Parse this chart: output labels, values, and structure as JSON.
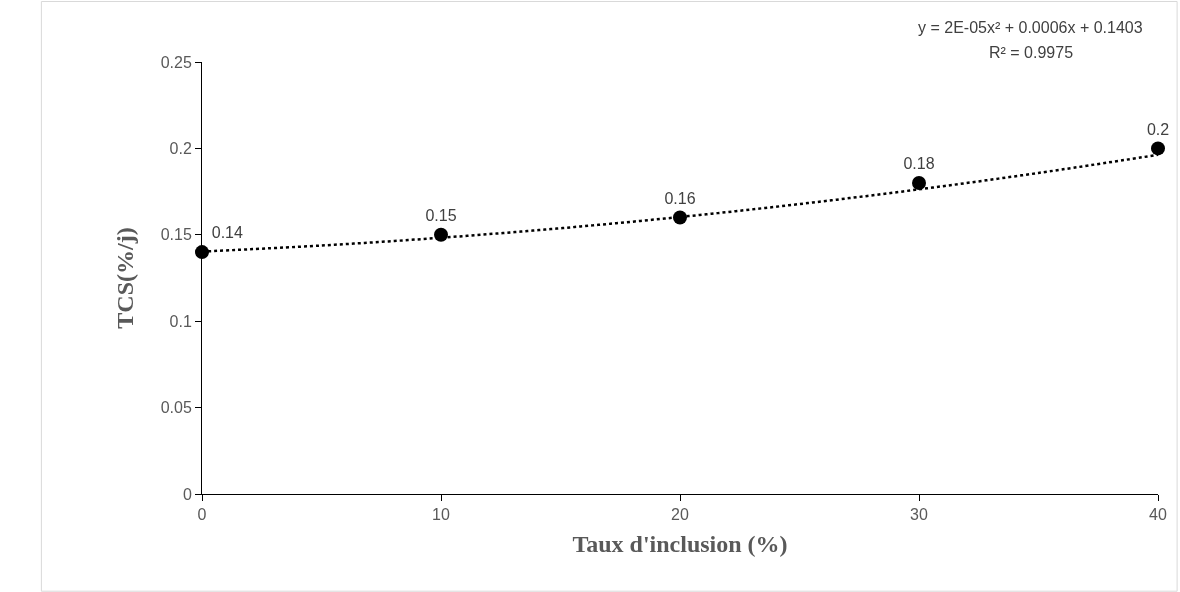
{
  "chart_data": {
    "type": "scatter",
    "xlabel": "Taux d'inclusion (%)",
    "ylabel": "TCS(%/j)",
    "x": [
      0,
      10,
      20,
      30,
      40
    ],
    "series": [
      {
        "color": "#000000",
        "values": [
          0.14,
          0.15,
          0.16,
          0.18,
          0.2
        ],
        "marker": "circle",
        "data_labels": true
      },
      {
        "type": "line",
        "color": "#000000",
        "x": [
          0,
          5,
          10,
          15,
          20,
          25,
          30,
          35,
          40
        ],
        "values": [
          0.1403,
          0.1438,
          0.1483,
          0.1538,
          0.1603,
          0.1678,
          0.1763,
          0.1858,
          0.1963
        ],
        "marker": "none",
        "line_style": "dotted"
      }
    ],
    "annotations": [
      "y = 2E-05x² + 0.0006x + 0.1403",
      "R² = 0.9975"
    ],
    "xlim": [
      0,
      40
    ],
    "xticks": [
      0,
      10,
      20,
      30,
      40
    ],
    "ylim": [
      0,
      0.25
    ],
    "yticks": [
      0,
      0.05,
      0.1,
      0.15,
      0.2,
      0.25
    ]
  }
}
